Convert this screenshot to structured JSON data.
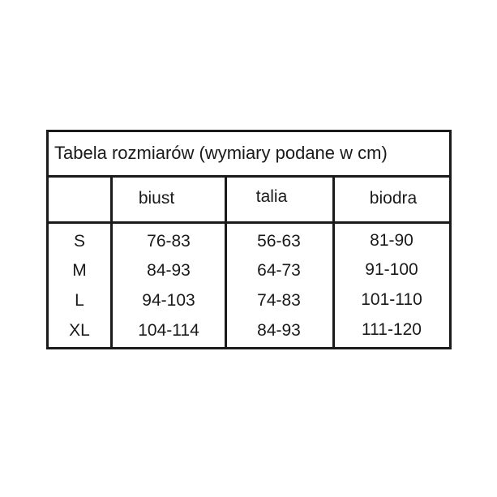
{
  "title": "Tabela rozmiarów (wymiary podane w cm)",
  "headers": [
    "",
    "biust",
    "talia",
    "biodra"
  ],
  "rows": [
    {
      "size": "S",
      "biust": "76-83",
      "talia": "56-63",
      "biodra": "81-90"
    },
    {
      "size": "M",
      "biust": "84-93",
      "talia": "64-73",
      "biodra": "91-100"
    },
    {
      "size": "L",
      "biust": "94-103",
      "talia": "74-83",
      "biodra": "101-110"
    },
    {
      "size": "XL",
      "biust": "104-114",
      "talia": "84-93",
      "biodra": "111-120"
    }
  ]
}
